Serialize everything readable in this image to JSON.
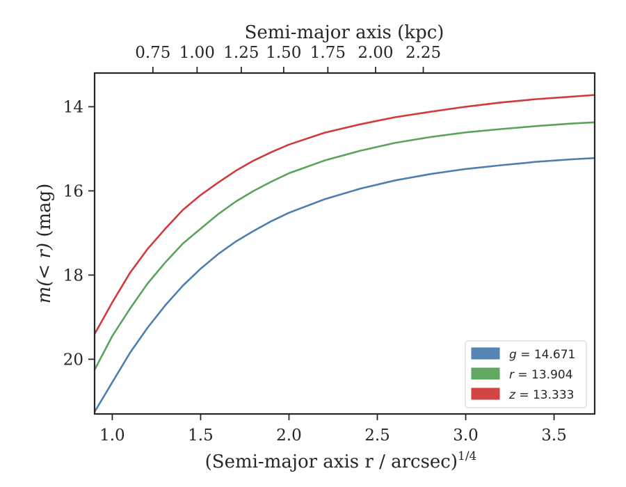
{
  "chart_data": {
    "type": "line",
    "title": "",
    "xlabel_bottom": "(Semi-major axis r / arcsec)",
    "xlabel_bottom_italic": "r",
    "xlabel_bottom_exponent": "1/4",
    "xlabel_top": "Semi-major axis (kpc)",
    "ylabel": "m(< r) (mag)",
    "ylabel_math": "m(< r)",
    "ylabel_unit": " (mag)",
    "xlim": [
      0.9,
      3.73
    ],
    "ylim": [
      21.3,
      13.2
    ],
    "y_inverted": true,
    "xticks": [
      1.0,
      1.5,
      2.0,
      2.5,
      3.0,
      3.5
    ],
    "xtick_labels": [
      "1.0",
      "1.5",
      "2.0",
      "2.5",
      "3.0",
      "3.5"
    ],
    "yticks": [
      14,
      16,
      18,
      20
    ],
    "ytick_labels": [
      "14",
      "16",
      "18",
      "20"
    ],
    "top_ticks_kpc": [
      0.75,
      1.0,
      1.25,
      1.5,
      1.75,
      2.0,
      2.25
    ],
    "top_tick_labels": [
      "0.75",
      "1.00",
      "1.25",
      "1.50",
      "1.75",
      "2.00",
      "2.25"
    ],
    "top_tick_x": [
      1.23,
      1.48,
      1.73,
      1.97,
      2.22,
      2.49,
      2.76
    ],
    "grid": false,
    "legend_position": "lower-right",
    "x": [
      0.9,
      1.0,
      1.1,
      1.2,
      1.3,
      1.4,
      1.5,
      1.6,
      1.7,
      1.8,
      1.9,
      2.0,
      2.2,
      2.4,
      2.6,
      2.8,
      3.0,
      3.2,
      3.4,
      3.6,
      3.73
    ],
    "series": [
      {
        "name": "g = 14.671",
        "legend_var": "g",
        "legend_value": "= 14.671",
        "color": "#4c7eb0",
        "values": [
          21.25,
          20.55,
          19.85,
          19.25,
          18.72,
          18.25,
          17.85,
          17.5,
          17.2,
          16.95,
          16.72,
          16.52,
          16.2,
          15.95,
          15.75,
          15.6,
          15.48,
          15.39,
          15.31,
          15.25,
          15.22
        ]
      },
      {
        "name": "r = 13.904",
        "legend_var": "r",
        "legend_value": "= 13.904",
        "color": "#5aa35a",
        "values": [
          20.25,
          19.45,
          18.8,
          18.2,
          17.7,
          17.25,
          16.9,
          16.55,
          16.25,
          16.0,
          15.78,
          15.58,
          15.28,
          15.05,
          14.86,
          14.72,
          14.61,
          14.53,
          14.46,
          14.4,
          14.37
        ]
      },
      {
        "name": "z = 13.333",
        "legend_var": "z",
        "legend_value": "= 13.333",
        "color": "#d13a3a",
        "values": [
          19.4,
          18.65,
          17.95,
          17.38,
          16.9,
          16.45,
          16.1,
          15.8,
          15.52,
          15.28,
          15.08,
          14.9,
          14.62,
          14.42,
          14.25,
          14.12,
          14.0,
          13.9,
          13.82,
          13.76,
          13.72
        ]
      }
    ]
  }
}
